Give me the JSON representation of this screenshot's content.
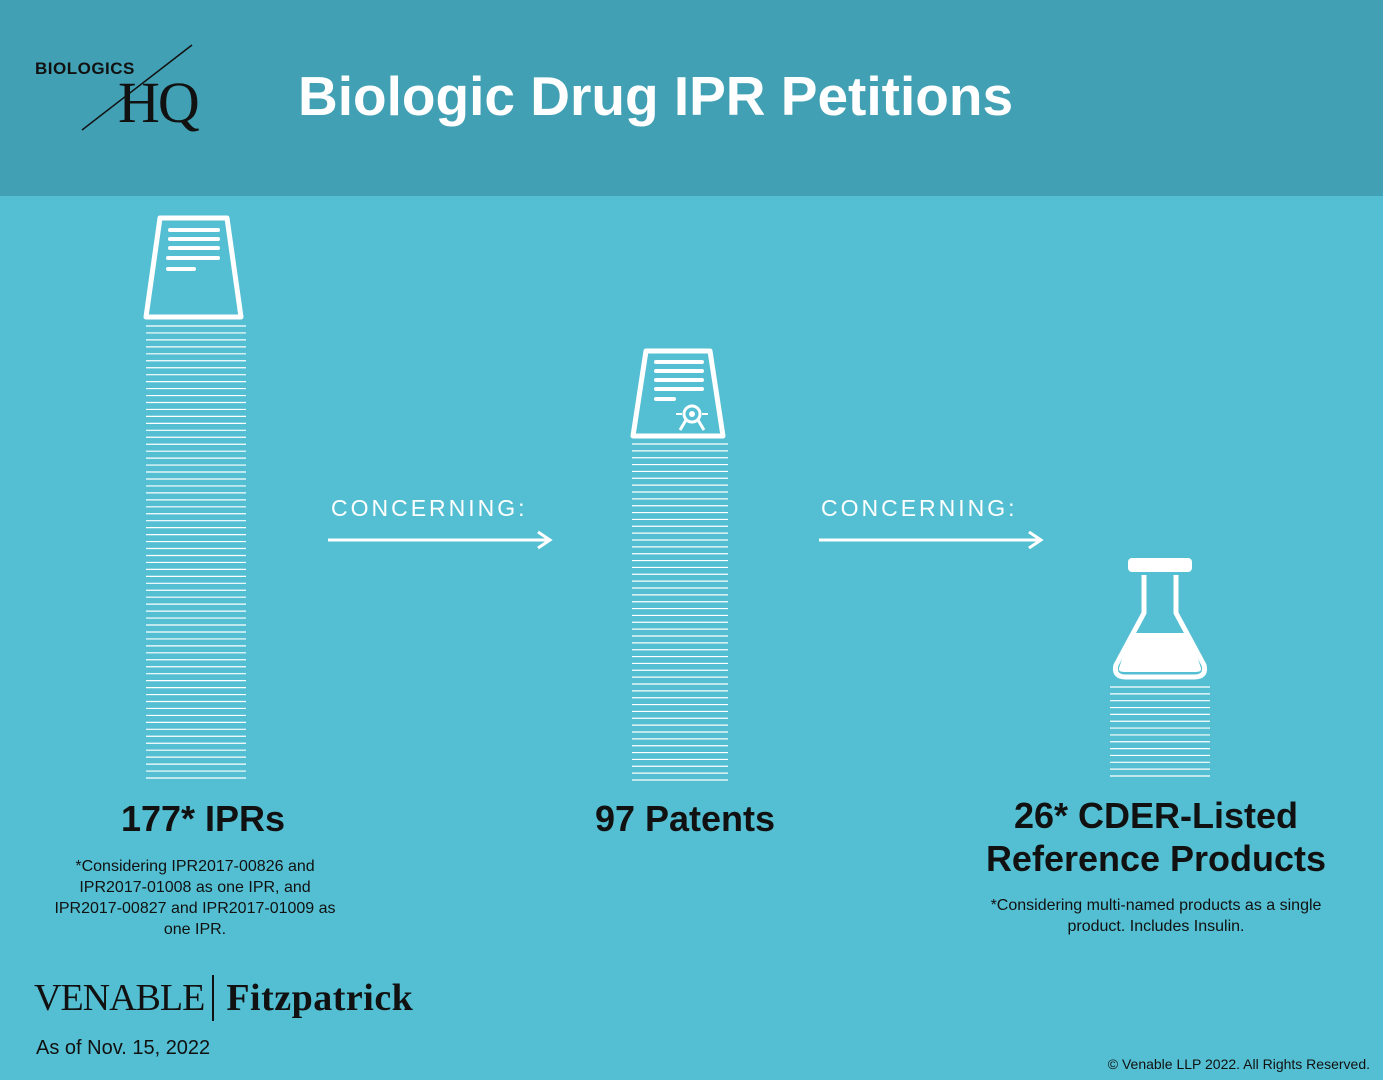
{
  "header": {
    "logo_top": "BIOLOGICS",
    "logo_hq": "HQ",
    "title": "Biologic Drug IPR Petitions"
  },
  "columns": [
    {
      "icon": "document-icon",
      "count": 177,
      "headline": "177* IPRs",
      "note_lines": [
        "*Considering IPR2017-00826 and",
        "IPR2017-01008 as one IPR, and",
        "IPR2017-00827 and IPR2017-01009 as",
        "one IPR."
      ]
    },
    {
      "icon": "certificate-icon",
      "count": 97,
      "headline": "97 Patents",
      "note_lines": []
    },
    {
      "icon": "flask-icon",
      "count": 26,
      "headline_lines": [
        "26* CDER-Listed",
        "Reference Products"
      ],
      "note_lines": [
        "*Considering multi-named products as a single",
        "product.  Includes Insulin."
      ]
    }
  ],
  "connectors": [
    {
      "label": "CONCERNING:"
    },
    {
      "label": "CONCERNING:"
    }
  ],
  "footer": {
    "venable": "VENABLE",
    "fitzpatrick": "Fitzpatrick",
    "as_of": "As of Nov. 15, 2022",
    "copyright": "© Venable LLP 2022. All Rights Reserved."
  },
  "colors": {
    "header_bg": "#42a0b4",
    "body_bg": "#54bfd2",
    "text_dark": "#111111",
    "text_light": "#ffffff"
  }
}
